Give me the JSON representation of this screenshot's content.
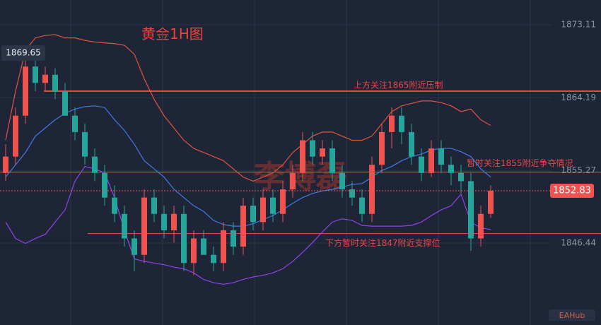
{
  "chart_data": {
    "type": "candlestick",
    "title": "黄金1H图",
    "watermark": "李博磊",
    "logo": "EAHub",
    "ylim": [
      1836.43,
      1876.13
    ],
    "yticks": [
      1873.11,
      1864.19,
      1855.27,
      1846.44
    ],
    "grid": true,
    "up_color": "#ef5350",
    "down_color": "#26a69a",
    "open": [
      1855,
      1857,
      1862,
      1868,
      1866,
      1867,
      1865,
      1862,
      1860,
      1857,
      1855,
      1852,
      1850,
      1847,
      1845,
      1852,
      1850,
      1848,
      1850,
      1844,
      1847,
      1845,
      1844,
      1848,
      1846,
      1851,
      1849,
      1852,
      1850,
      1853,
      1855,
      1859,
      1857,
      1858,
      1855,
      1853,
      1852,
      1850,
      1856,
      1860,
      1862,
      1860,
      1857,
      1855,
      1858,
      1856,
      1855,
      1854,
      1847,
      1850
    ],
    "high": [
      1858.5,
      1863,
      1869.65,
      1868.8,
      1868,
      1867.8,
      1866,
      1863,
      1861,
      1858,
      1856,
      1853.5,
      1851,
      1848,
      1853,
      1853,
      1851,
      1851,
      1851,
      1848,
      1848,
      1846,
      1849,
      1849,
      1852,
      1852,
      1853,
      1853,
      1854,
      1856,
      1860,
      1860,
      1859,
      1859,
      1856,
      1854,
      1853,
      1857,
      1861,
      1863,
      1863,
      1861,
      1858,
      1859,
      1859,
      1857,
      1856,
      1855,
      1851,
      1853.5
    ],
    "low": [
      1854,
      1856,
      1861,
      1865,
      1865,
      1864,
      1862,
      1859,
      1856,
      1854,
      1851,
      1849,
      1846,
      1843,
      1844,
      1849,
      1847,
      1846.5,
      1843,
      1842.5,
      1845,
      1843,
      1843,
      1845,
      1845,
      1848,
      1848,
      1849,
      1849,
      1852,
      1854,
      1856,
      1856,
      1854,
      1852,
      1851,
      1849,
      1849,
      1855,
      1858,
      1858.5,
      1856,
      1854,
      1854.5,
      1855,
      1853.5,
      1852.5,
      1845.5,
      1846,
      1849.5
    ],
    "close": [
      1857,
      1862,
      1868,
      1866,
      1867,
      1865,
      1862,
      1860,
      1857,
      1855,
      1852,
      1850,
      1847,
      1845,
      1852,
      1850,
      1848,
      1850,
      1844,
      1847,
      1845,
      1844,
      1848,
      1846,
      1851,
      1849,
      1852,
      1850,
      1853,
      1855,
      1859,
      1857,
      1858,
      1855,
      1853,
      1852,
      1850,
      1856,
      1860,
      1862,
      1860,
      1857,
      1855,
      1858,
      1856,
      1855,
      1854,
      1847,
      1850,
      1852.83
    ],
    "series": [
      {
        "color": "#e0533f",
        "values": [
          1859,
          1865,
          1870,
          1871.5,
          1871.8,
          1871.9,
          1871.5,
          1871.5,
          1871.2,
          1871,
          1870.9,
          1870.8,
          1870.6,
          1869.5,
          1866.5,
          1864,
          1862,
          1860.5,
          1859,
          1858,
          1857.5,
          1857,
          1856.5,
          1855.5,
          1854.5,
          1854,
          1854.5,
          1855,
          1856,
          1857.5,
          1858.5,
          1859.5,
          1860,
          1860,
          1859.5,
          1859,
          1859,
          1859.5,
          1861,
          1862.5,
          1863.2,
          1863.5,
          1863.8,
          1863.8,
          1863.6,
          1863.2,
          1862.5,
          1862.8,
          1861.5,
          1860.8
        ]
      },
      {
        "color": "#3f7be0",
        "values": [
          1854.5,
          1856,
          1857.5,
          1859.5,
          1860.5,
          1861.5,
          1862.3,
          1862.8,
          1863.1,
          1863.2,
          1863,
          1861.5,
          1860.2,
          1858.5,
          1856.5,
          1855.5,
          1854.5,
          1853,
          1852,
          1851,
          1850.3,
          1849.2,
          1848.7,
          1848.5,
          1848.5,
          1848.8,
          1849.3,
          1849.8,
          1850.5,
          1851.3,
          1852,
          1852.5,
          1852.8,
          1853,
          1853.3,
          1853.6,
          1853.7,
          1854.5,
          1855.3,
          1855.8,
          1856.5,
          1857,
          1857.3,
          1857.8,
          1858,
          1858,
          1857.6,
          1857,
          1855.5,
          1854.5
        ]
      },
      {
        "color": "#8e44e8",
        "values": [
          1849,
          1847,
          1846.4,
          1847,
          1847.5,
          1849,
          1850.5,
          1854,
          1855.8,
          1855.5,
          1855,
          1852,
          1848,
          1844.5,
          1844.2,
          1844,
          1843.8,
          1843.5,
          1843.3,
          1842.8,
          1842,
          1841.6,
          1841.4,
          1841.6,
          1842,
          1842.3,
          1842.5,
          1842.8,
          1843.3,
          1844.2,
          1845.3,
          1846.5,
          1847.8,
          1849,
          1849.4,
          1849.2,
          1848.6,
          1848.5,
          1848.5,
          1848.5,
          1848.5,
          1848.6,
          1849,
          1849.8,
          1850.5,
          1851,
          1852.4,
          1849,
          1848.3,
          1848.1
        ]
      }
    ],
    "levels": [
      {
        "value": 1865,
        "label": "上方关注1865附近压制"
      },
      {
        "value": 1855.1,
        "label": "暂时关注1855附近争夺情况"
      },
      {
        "value": 1847.6,
        "label": "下方暂时关注1847附近支撑位"
      }
    ],
    "level_color": "#e84545"
  }
}
